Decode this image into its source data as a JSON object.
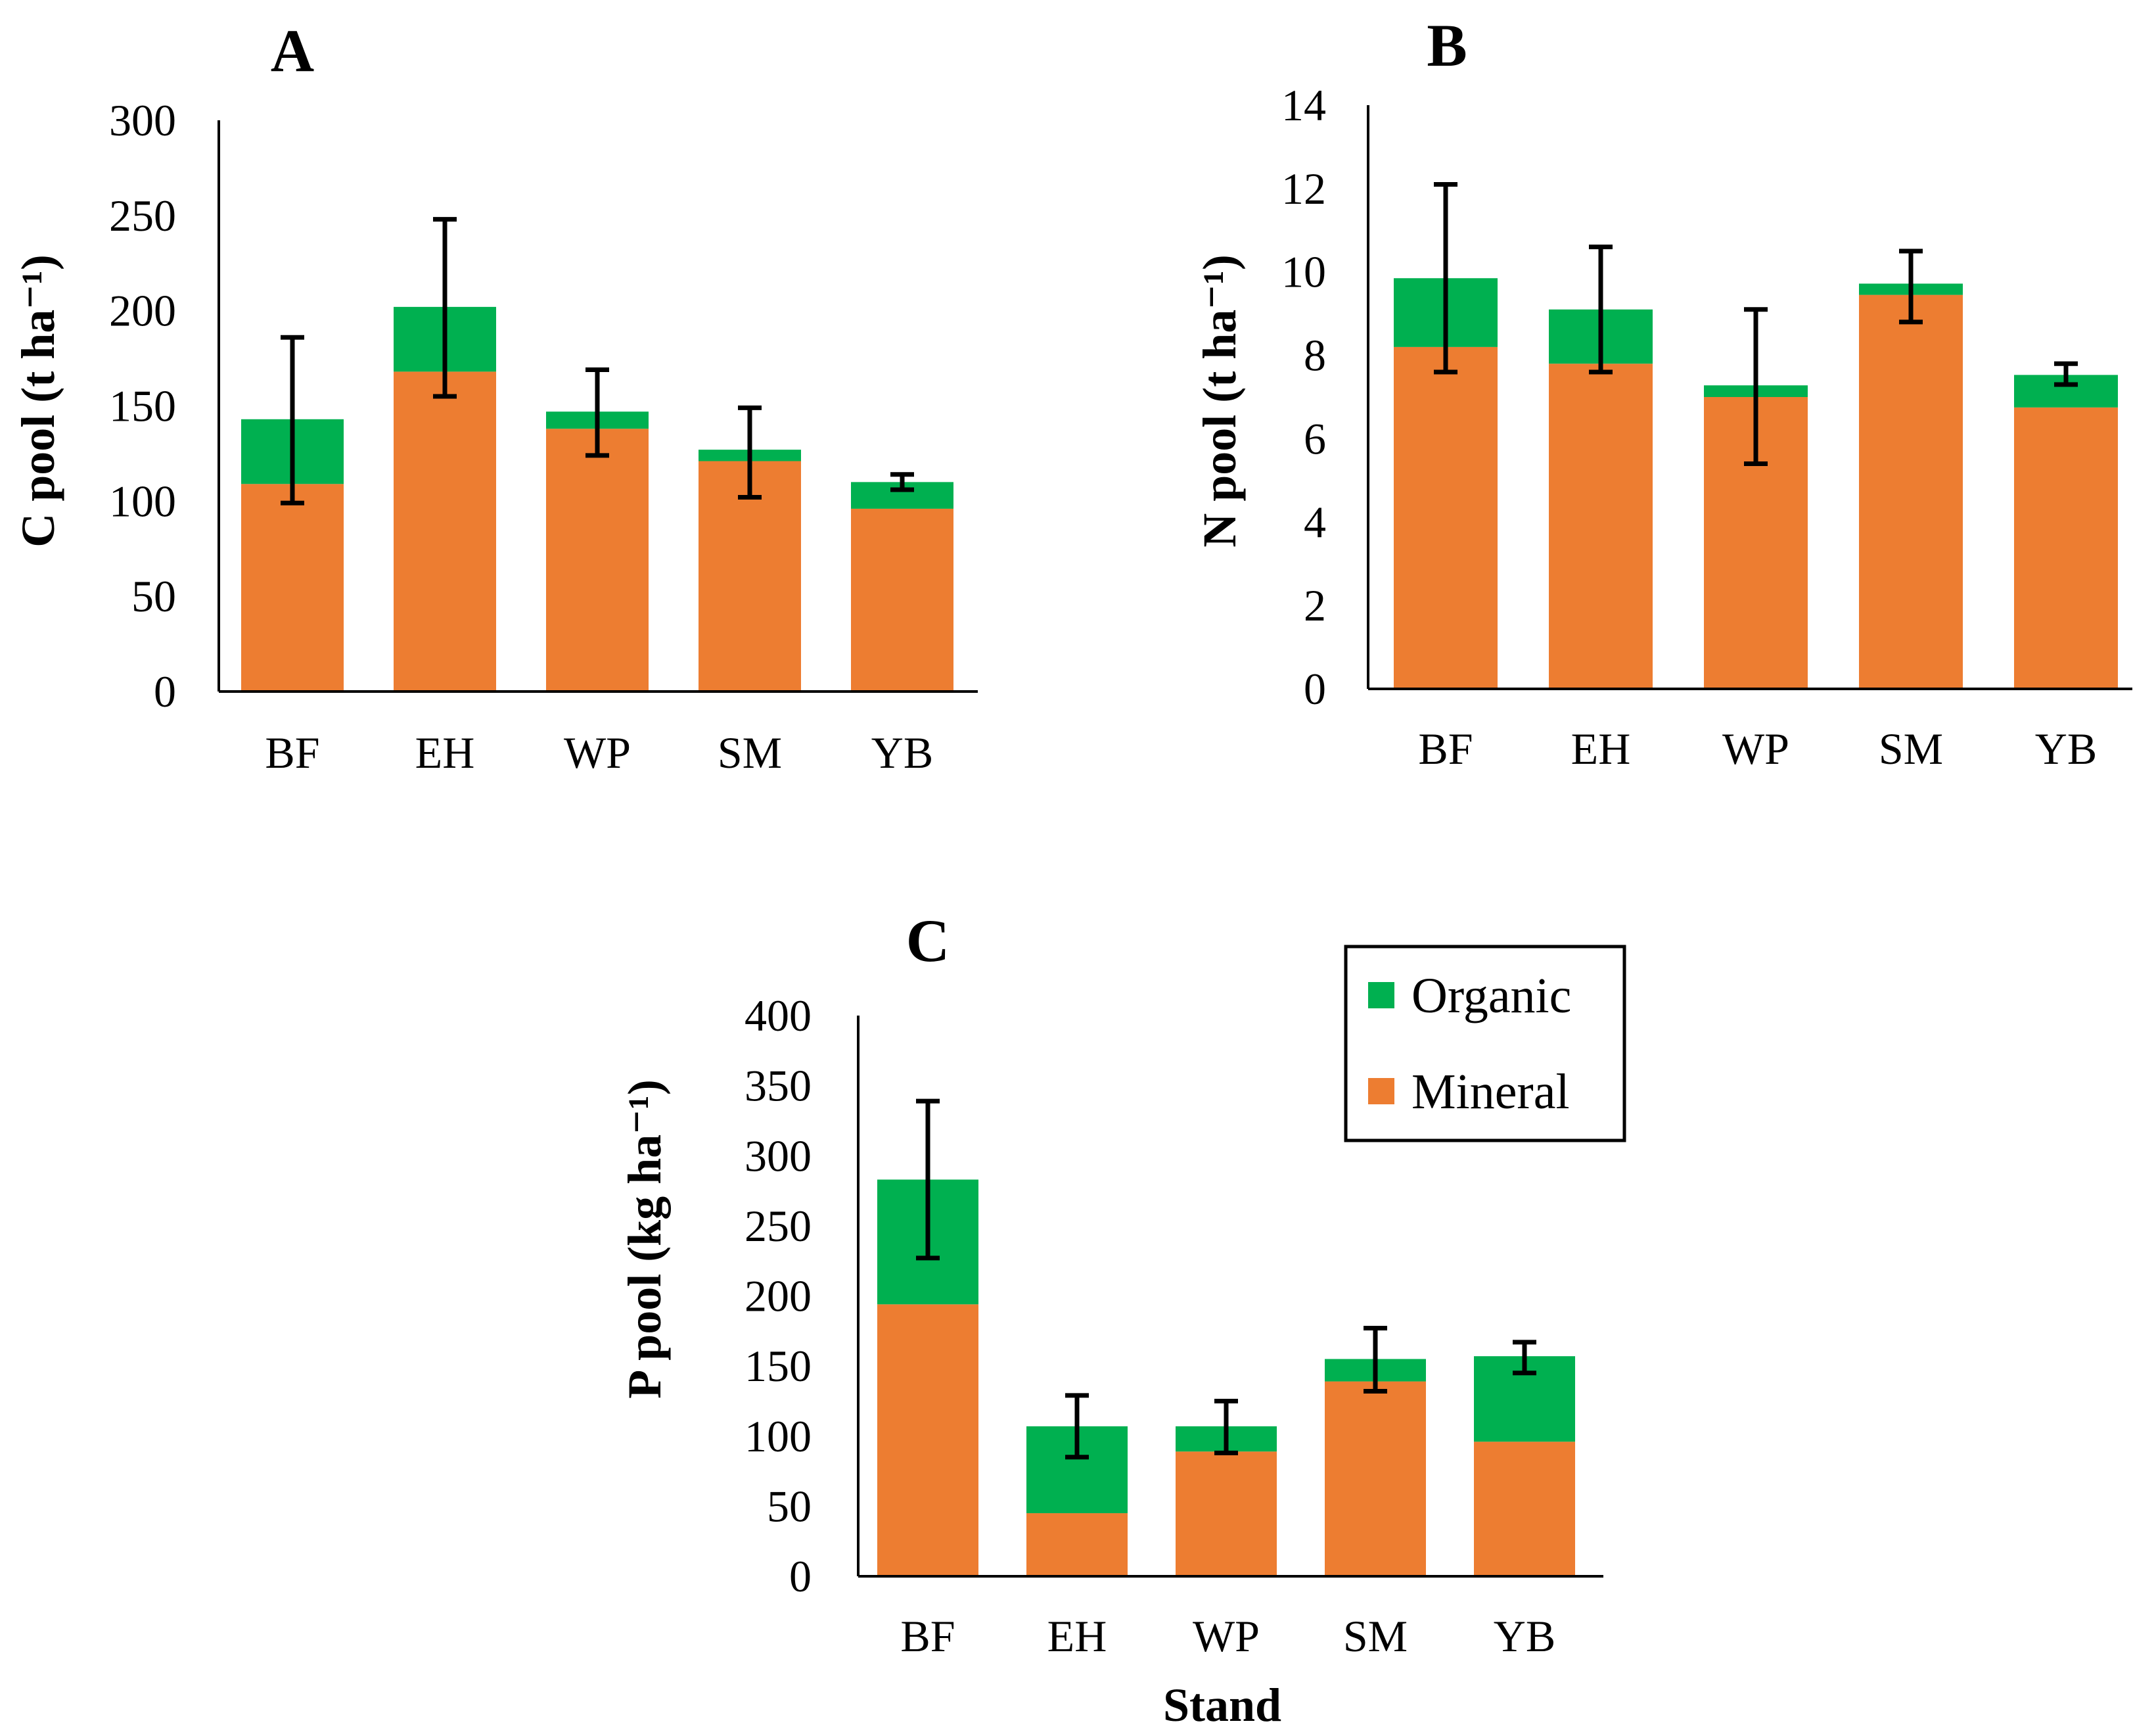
{
  "colors": {
    "organic": "#00b050",
    "mineral": "#ed7d31",
    "axis": "#000000",
    "errorbar": "#000000"
  },
  "legend": {
    "items": [
      {
        "label": "Organic",
        "color": "#00b050"
      },
      {
        "label": "Mineral",
        "color": "#ed7d31"
      }
    ],
    "placement": "top-right of panel C"
  },
  "chart_data": [
    {
      "panel": "A",
      "type": "bar",
      "stacked": true,
      "title": "A",
      "xlabel": "",
      "ylabel": "C pool (t ha⁻¹)",
      "categories": [
        "BF",
        "EH",
        "WP",
        "SM",
        "YB"
      ],
      "ylim": [
        0,
        300
      ],
      "yticks": [
        0,
        50,
        100,
        150,
        200,
        250,
        300
      ],
      "series": [
        {
          "name": "Mineral",
          "values": [
            109,
            168,
            138,
            121,
            96
          ]
        },
        {
          "name": "Organic",
          "values": [
            34,
            34,
            9,
            6,
            14
          ]
        }
      ],
      "error_bars": [
        {
          "low": 99,
          "high": 186
        },
        {
          "low": 155,
          "high": 248
        },
        {
          "low": 124,
          "high": 169
        },
        {
          "low": 102,
          "high": 149
        },
        {
          "low": 106,
          "high": 114
        }
      ]
    },
    {
      "panel": "B",
      "type": "bar",
      "stacked": true,
      "title": "B",
      "xlabel": "",
      "ylabel": "N pool (t ha⁻¹)",
      "categories": [
        "BF",
        "EH",
        "WP",
        "SM",
        "YB"
      ],
      "ylim": [
        0,
        14
      ],
      "yticks": [
        0,
        2,
        4,
        6,
        8,
        10,
        12,
        14
      ],
      "series": [
        {
          "name": "Mineral",
          "values": [
            8.2,
            7.8,
            7.0,
            9.45,
            6.75
          ]
        },
        {
          "name": "Organic",
          "values": [
            1.65,
            1.3,
            0.28,
            0.27,
            0.78
          ]
        }
      ],
      "error_bars": [
        {
          "low": 7.6,
          "high": 12.1
        },
        {
          "low": 7.6,
          "high": 10.6
        },
        {
          "low": 5.4,
          "high": 9.1
        },
        {
          "low": 8.8,
          "high": 10.5
        },
        {
          "low": 7.3,
          "high": 7.8
        }
      ]
    },
    {
      "panel": "C",
      "type": "bar",
      "stacked": true,
      "title": "C",
      "xlabel": "Stand",
      "ylabel": "P pool (kg ha⁻¹)",
      "categories": [
        "BF",
        "EH",
        "WP",
        "SM",
        "YB"
      ],
      "ylim": [
        0,
        400
      ],
      "yticks": [
        0,
        50,
        100,
        150,
        200,
        250,
        300,
        350,
        400
      ],
      "series": [
        {
          "name": "Mineral",
          "values": [
            194,
            45,
            89,
            139,
            96
          ]
        },
        {
          "name": "Organic",
          "values": [
            89,
            62,
            18,
            16,
            61
          ]
        }
      ],
      "error_bars": [
        {
          "low": 227,
          "high": 339
        },
        {
          "low": 85,
          "high": 129
        },
        {
          "low": 88,
          "high": 125
        },
        {
          "low": 132,
          "high": 177
        },
        {
          "low": 145,
          "high": 167
        }
      ]
    }
  ]
}
